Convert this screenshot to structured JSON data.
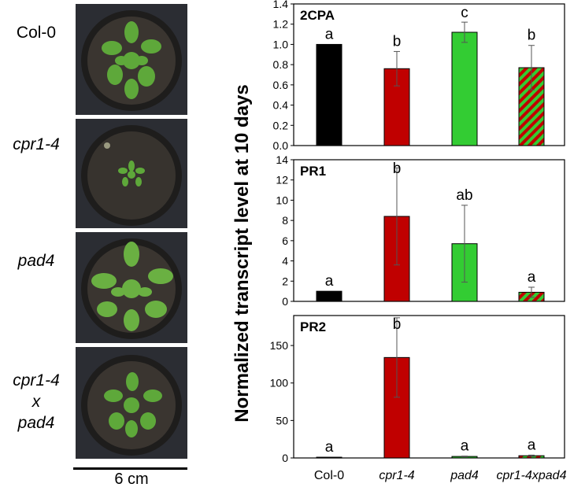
{
  "panels": [
    {
      "label": "Col-0",
      "italic": false
    },
    {
      "label": "cpr1-4",
      "italic": true
    },
    {
      "label": "pad4",
      "italic": true
    },
    {
      "label": "cpr1-4\nx\npad4",
      "italic": true
    }
  ],
  "scale_bar_label": "6 cm",
  "y_axis_label": "Normalized transcript level at 10 days",
  "categories": [
    "Col-0",
    "cpr1-4",
    "pad4",
    "cpr1-4xpad4"
  ],
  "category_italic": [
    false,
    true,
    true,
    true
  ],
  "colors": {
    "col0": "#000000",
    "cpr": "#c00000",
    "pad4": "#33cc33",
    "hatch_a": "#c00000",
    "hatch_b": "#33cc33"
  },
  "chart_data": [
    {
      "type": "bar",
      "title": "2CPA",
      "categories": [
        "Col-0",
        "cpr1-4",
        "pad4",
        "cpr1-4xpad4"
      ],
      "values": [
        1.0,
        0.76,
        1.12,
        0.77
      ],
      "error": [
        0.0,
        0.17,
        0.1,
        0.22
      ],
      "letters": [
        "a",
        "b",
        "c",
        "b"
      ],
      "ylim": [
        0,
        1.4
      ],
      "yticks": [
        "0.0",
        "0.2",
        "0.4",
        "0.6",
        "0.8",
        "1.0",
        "1.2",
        "1.4"
      ]
    },
    {
      "type": "bar",
      "title": "PR1",
      "categories": [
        "Col-0",
        "cpr1-4",
        "pad4",
        "cpr1-4xpad4"
      ],
      "values": [
        1.0,
        8.4,
        5.7,
        0.9
      ],
      "error": [
        0.0,
        4.8,
        3.8,
        0.5
      ],
      "letters": [
        "a",
        "b",
        "ab",
        "a"
      ],
      "ylim": [
        0,
        14
      ],
      "yticks": [
        "0",
        "2",
        "4",
        "6",
        "8",
        "10",
        "12",
        "14"
      ]
    },
    {
      "type": "bar",
      "title": "PR2",
      "categories": [
        "Col-0",
        "cpr1-4",
        "pad4",
        "cpr1-4xpad4"
      ],
      "values": [
        1,
        134,
        2,
        3
      ],
      "error": [
        0,
        53,
        0.5,
        0.8
      ],
      "letters": [
        "a",
        "b",
        "a",
        "a"
      ],
      "ylim": [
        0,
        190
      ],
      "yticks": [
        "0",
        "50",
        "100",
        "150"
      ]
    }
  ]
}
